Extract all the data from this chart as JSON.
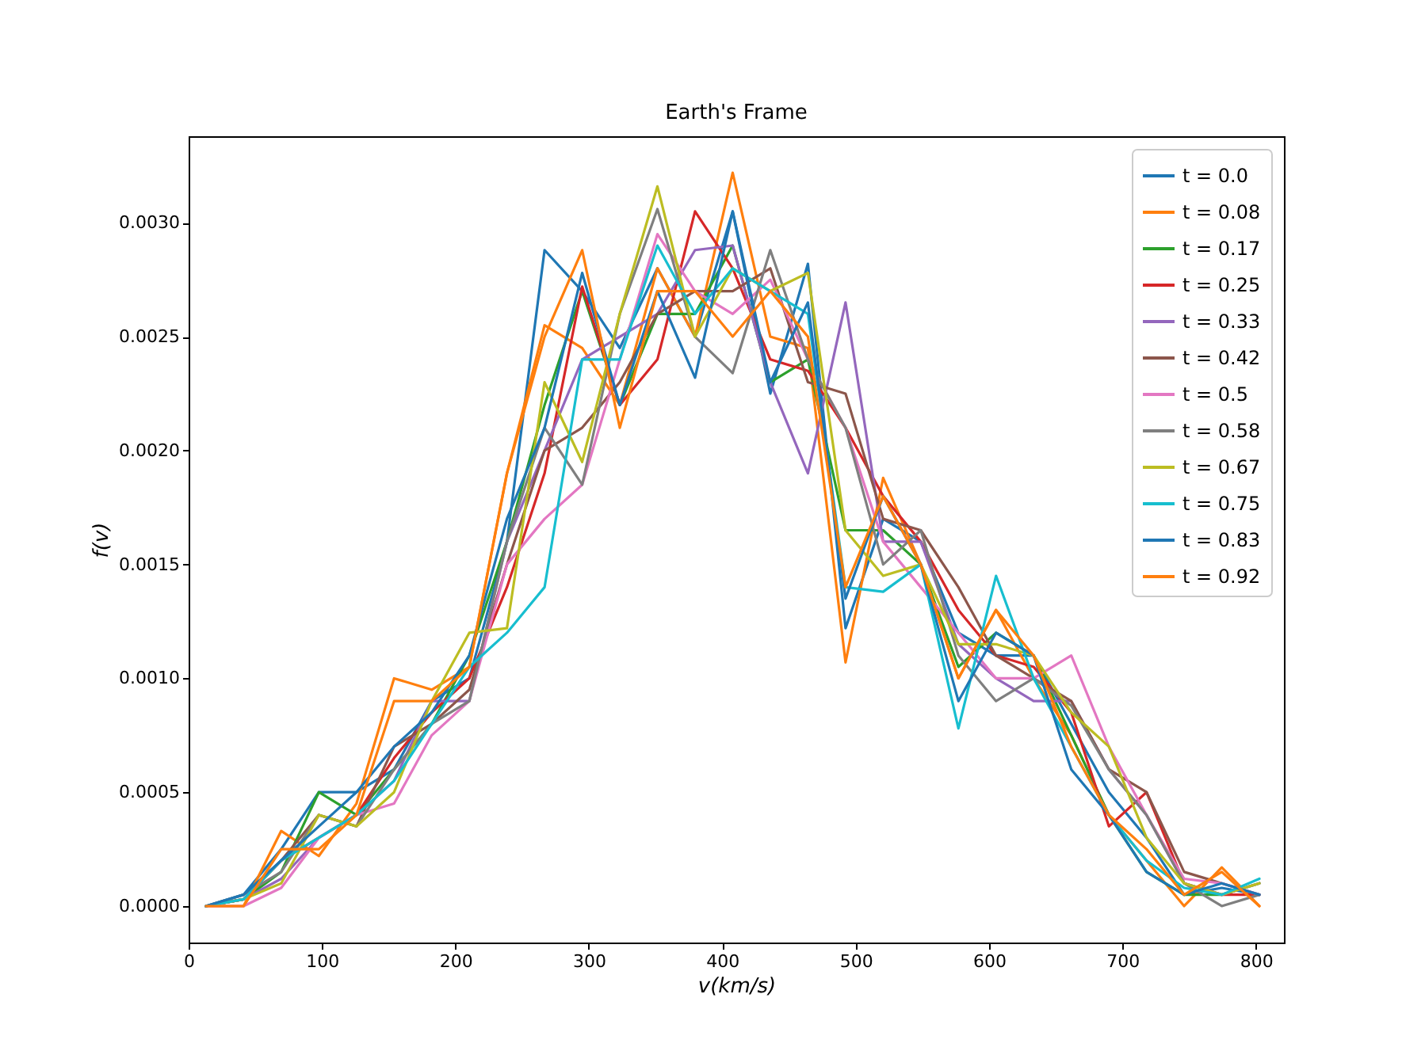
{
  "chart_data": {
    "type": "line",
    "title": "Earth's Frame",
    "xlabel": "v(km/s)",
    "ylabel": "f(v)",
    "legend": "top right",
    "grid": false,
    "x": [
      13,
      41.2,
      69.4,
      97.6,
      125.8,
      154,
      182.2,
      210.4,
      238.6,
      266.8,
      295,
      323.2,
      351.4,
      379.6,
      407.8,
      436,
      464.2,
      492.4,
      520.6,
      548.8,
      577,
      605.2,
      633.4,
      661.6,
      689.8,
      718,
      746.2,
      774.4,
      802.6
    ],
    "xlim": [
      0,
      821
    ],
    "xticks": [
      0,
      100,
      200,
      300,
      400,
      500,
      600,
      700,
      800
    ],
    "ylim": [
      -0.00016,
      0.00338
    ],
    "yticks": [
      {
        "value": 0,
        "label": "0.0000"
      },
      {
        "value": 0.0005,
        "label": "0.0005"
      },
      {
        "value": 0.001,
        "label": "0.0010"
      },
      {
        "value": 0.0015,
        "label": "0.0015"
      },
      {
        "value": 0.002,
        "label": "0.0020"
      },
      {
        "value": 0.0025,
        "label": "0.0025"
      },
      {
        "value": 0.003,
        "label": "0.0030"
      }
    ],
    "series": [
      {
        "name": "t = 0.0",
        "color": "#1f77b4",
        "values": [
          0,
          5e-05,
          0.00025,
          0.0005,
          0.0005,
          0.0006,
          0.0009,
          0.001,
          0.0016,
          0.00288,
          0.0027,
          0.00245,
          0.0028,
          0.0025,
          0.00305,
          0.00225,
          0.00282,
          0.00122,
          0.0017,
          0.0016,
          0.0012,
          0.0011,
          0.0011,
          0.0008,
          0.0005,
          0.0003,
          5e-05,
          8e-05,
          5e-05
        ]
      },
      {
        "name": "t = 0.08",
        "color": "#ff7f0e",
        "values": [
          0,
          0,
          0.00033,
          0.00022,
          0.00045,
          0.001,
          0.00095,
          0.00105,
          0.0019,
          0.00255,
          0.00245,
          0.0022,
          0.0028,
          0.0025,
          0.00322,
          0.0025,
          0.00245,
          0.00107,
          0.00188,
          0.0015,
          0.001,
          0.0013,
          0.001,
          0.00075,
          0.0004,
          0.0002,
          0,
          0.00017,
          0
        ]
      },
      {
        "name": "t = 0.17",
        "color": "#2ca02c",
        "values": [
          0,
          3e-05,
          0.00015,
          0.0005,
          0.0004,
          0.0006,
          0.0008,
          0.0011,
          0.0016,
          0.0022,
          0.0027,
          0.0022,
          0.0026,
          0.0026,
          0.0029,
          0.0023,
          0.0024,
          0.00165,
          0.00165,
          0.0015,
          0.00105,
          0.0012,
          0.0011,
          0.00075,
          0.0004,
          0.00015,
          5e-05,
          5e-05,
          0.0001
        ]
      },
      {
        "name": "t = 0.25",
        "color": "#d62728",
        "values": [
          0,
          3e-05,
          0.0002,
          0.0003,
          0.0004,
          0.00065,
          0.00085,
          0.001,
          0.0014,
          0.0019,
          0.00272,
          0.0022,
          0.0024,
          0.00305,
          0.0028,
          0.0024,
          0.00235,
          0.0021,
          0.0018,
          0.0016,
          0.0013,
          0.0011,
          0.00105,
          0.00085,
          0.00035,
          0.0005,
          0.0001,
          5e-05,
          5e-05
        ]
      },
      {
        "name": "t = 0.33",
        "color": "#9467bd",
        "values": [
          0,
          3e-05,
          0.00012,
          0.0003,
          0.0004,
          0.00055,
          0.0009,
          0.0009,
          0.0016,
          0.002,
          0.0024,
          0.0025,
          0.0026,
          0.00288,
          0.0029,
          0.0023,
          0.0019,
          0.00265,
          0.0016,
          0.0016,
          0.00115,
          0.001,
          0.0009,
          0.0009,
          0.0006,
          0.0004,
          0.0001,
          5e-05,
          0.0001
        ]
      },
      {
        "name": "t = 0.42",
        "color": "#8c564b",
        "values": [
          0,
          3e-05,
          0.0002,
          0.0004,
          0.00035,
          0.0007,
          0.0008,
          0.00095,
          0.0015,
          0.002,
          0.0021,
          0.0023,
          0.0026,
          0.0027,
          0.0027,
          0.0028,
          0.0023,
          0.00225,
          0.0017,
          0.00165,
          0.0014,
          0.0011,
          0.001,
          0.0009,
          0.0006,
          0.0005,
          0.00015,
          0.0001,
          5e-05
        ]
      },
      {
        "name": "t = 0.5",
        "color": "#e377c2",
        "values": [
          0,
          0,
          8e-05,
          0.0003,
          0.0004,
          0.00045,
          0.00075,
          0.0009,
          0.0015,
          0.0017,
          0.00185,
          0.0024,
          0.00295,
          0.0027,
          0.0026,
          0.00275,
          0.0024,
          0.0021,
          0.0016,
          0.0014,
          0.0012,
          0.001,
          0.001,
          0.0011,
          0.0007,
          0.0004,
          0.00012,
          0.0001,
          5e-05
        ]
      },
      {
        "name": "t = 0.58",
        "color": "#7f7f7f",
        "values": [
          0,
          5e-05,
          0.00015,
          0.0004,
          0.00035,
          0.0006,
          0.0008,
          0.0009,
          0.0016,
          0.0021,
          0.00185,
          0.0026,
          0.00306,
          0.0025,
          0.00234,
          0.00288,
          0.0024,
          0.0021,
          0.0015,
          0.00165,
          0.0011,
          0.0009,
          0.001,
          0.00088,
          0.0006,
          0.0004,
          0.0001,
          0,
          5e-05
        ]
      },
      {
        "name": "t = 0.67",
        "color": "#bcbd22",
        "values": [
          0,
          3e-05,
          0.0001,
          0.0004,
          0.00035,
          0.0005,
          0.0009,
          0.0012,
          0.00122,
          0.0023,
          0.00195,
          0.0026,
          0.00316,
          0.0025,
          0.0028,
          0.0027,
          0.00278,
          0.00165,
          0.00145,
          0.0015,
          0.00115,
          0.00115,
          0.0011,
          0.00085,
          0.0007,
          0.0003,
          0.0001,
          5e-05,
          0.0001
        ]
      },
      {
        "name": "t = 0.75",
        "color": "#17becf",
        "values": [
          0,
          3e-05,
          0.0002,
          0.0003,
          0.0004,
          0.00055,
          0.0008,
          0.00105,
          0.0012,
          0.0014,
          0.0024,
          0.0024,
          0.0029,
          0.0026,
          0.0028,
          0.0027,
          0.0026,
          0.0014,
          0.00138,
          0.0015,
          0.00078,
          0.00145,
          0.001,
          0.0007,
          0.0004,
          0.0002,
          8e-05,
          5e-05,
          0.00012
        ]
      },
      {
        "name": "t = 0.83",
        "color": "#1f77b4",
        "values": [
          0,
          5e-05,
          0.0002,
          0.00035,
          0.0005,
          0.0007,
          0.00085,
          0.0011,
          0.0017,
          0.0021,
          0.00278,
          0.0022,
          0.0027,
          0.00232,
          0.00305,
          0.0023,
          0.00265,
          0.00135,
          0.0018,
          0.0015,
          0.0009,
          0.0012,
          0.0011,
          0.0006,
          0.0004,
          0.00015,
          5e-05,
          0.0001,
          5e-05
        ]
      },
      {
        "name": "t = 0.92",
        "color": "#ff7f0e",
        "values": [
          0,
          0,
          0.00025,
          0.00025,
          0.0004,
          0.0009,
          0.0009,
          0.00105,
          0.0019,
          0.0025,
          0.00288,
          0.0021,
          0.0027,
          0.0027,
          0.0025,
          0.0027,
          0.0025,
          0.0014,
          0.0018,
          0.0015,
          0.001,
          0.0013,
          0.0011,
          0.0007,
          0.0004,
          0.00025,
          5e-05,
          0.00015,
          0
        ]
      }
    ]
  }
}
